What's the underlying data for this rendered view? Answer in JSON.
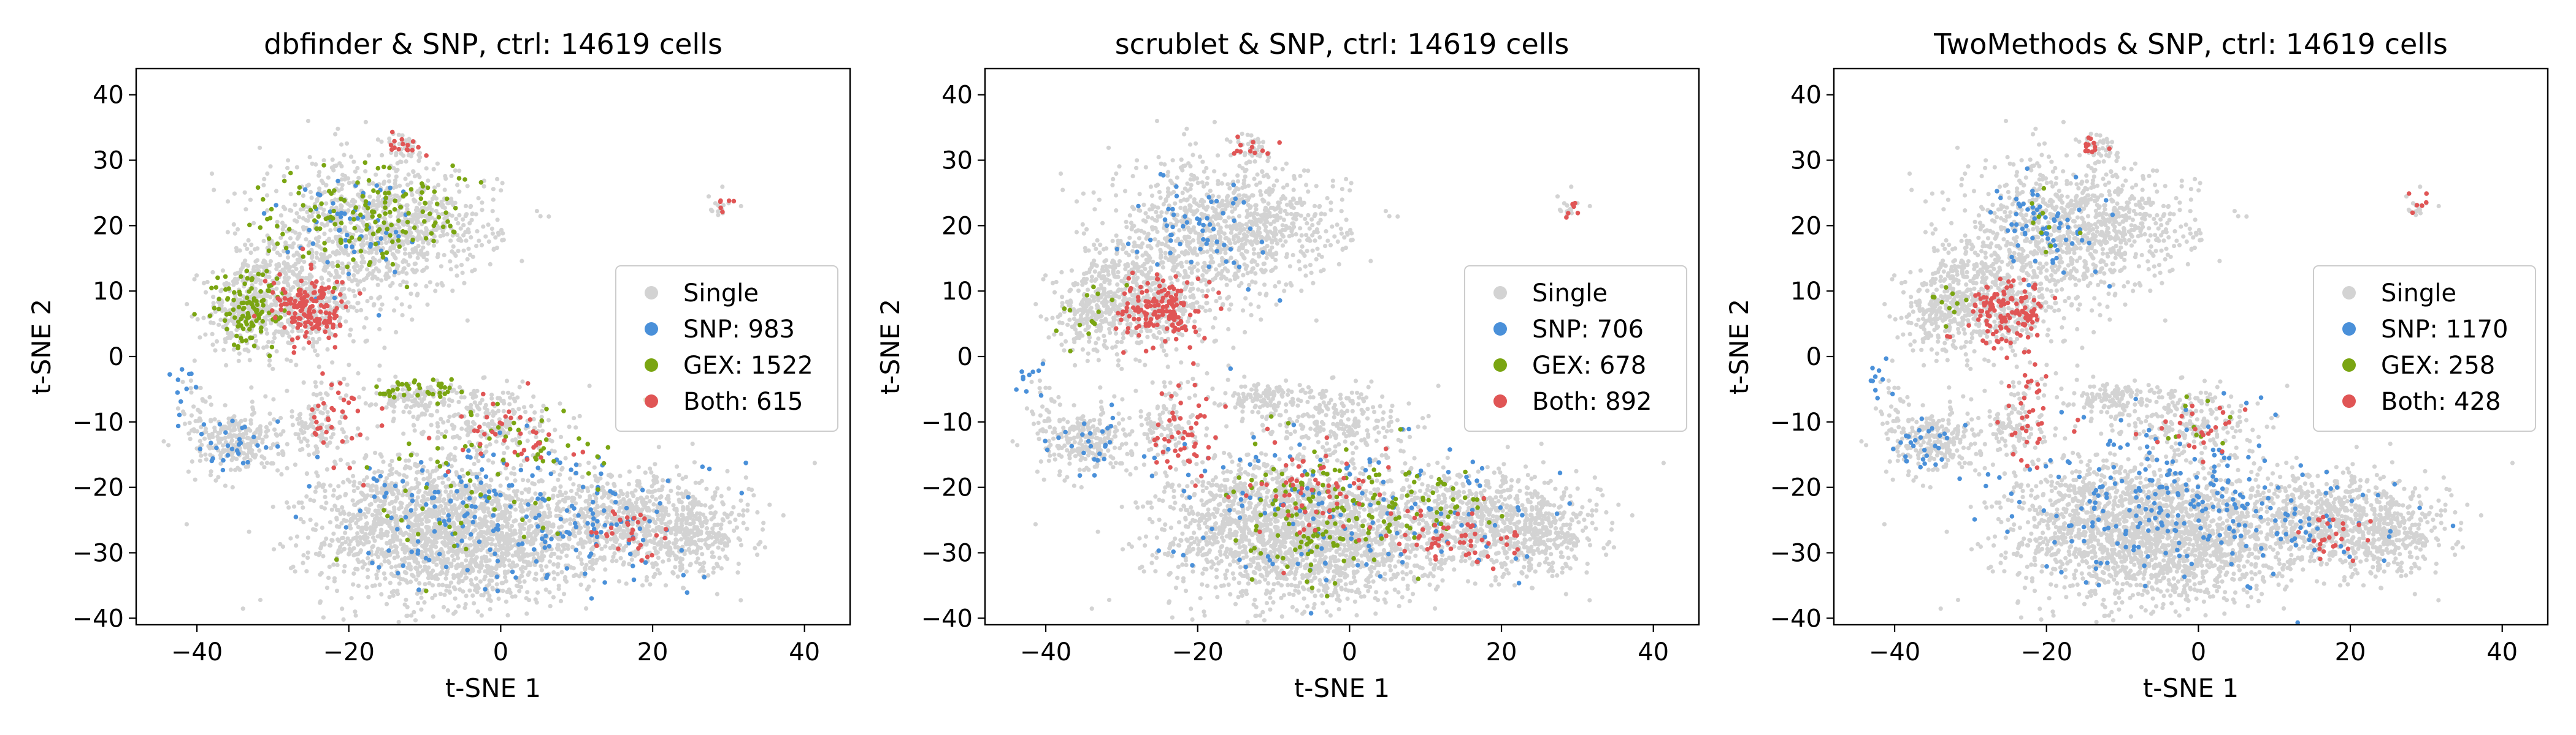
{
  "chart_data": [
    {
      "type": "scatter",
      "title": "dbfinder & SNP, ctrl: 14619 cells",
      "xlabel": "t-SNE 1",
      "ylabel": "t-SNE 2",
      "xlim": [
        -48,
        46
      ],
      "ylim": [
        -41,
        44
      ],
      "xticks": [
        -40,
        -20,
        0,
        20,
        40
      ],
      "yticks": [
        -40,
        -30,
        -20,
        -10,
        0,
        10,
        20,
        30,
        40
      ],
      "grid": false,
      "legend_position": "right",
      "series": [
        {
          "name": "Single",
          "color": "#d3d3d3"
        },
        {
          "name": "SNP: 983",
          "color": "#4a90d9"
        },
        {
          "name": "GEX: 1522",
          "color": "#7aa512"
        },
        {
          "name": "Both: 615",
          "color": "#e05555"
        }
      ]
    },
    {
      "type": "scatter",
      "title": "scrublet & SNP, ctrl: 14619 cells",
      "xlabel": "t-SNE 1",
      "ylabel": "t-SNE 2",
      "xlim": [
        -48,
        46
      ],
      "ylim": [
        -41,
        44
      ],
      "xticks": [
        -40,
        -20,
        0,
        20,
        40
      ],
      "yticks": [
        -40,
        -30,
        -20,
        -10,
        0,
        10,
        20,
        30,
        40
      ],
      "grid": false,
      "legend_position": "right",
      "series": [
        {
          "name": "Single",
          "color": "#d3d3d3"
        },
        {
          "name": "SNP: 706",
          "color": "#4a90d9"
        },
        {
          "name": "GEX: 678",
          "color": "#7aa512"
        },
        {
          "name": "Both: 892",
          "color": "#e05555"
        }
      ]
    },
    {
      "type": "scatter",
      "title": "TwoMethods & SNP, ctrl: 14619 cells",
      "xlabel": "t-SNE 1",
      "ylabel": "t-SNE 2",
      "xlim": [
        -48,
        46
      ],
      "ylim": [
        -41,
        44
      ],
      "xticks": [
        -40,
        -20,
        0,
        20,
        40
      ],
      "yticks": [
        -40,
        -30,
        -20,
        -10,
        0,
        10,
        20,
        30,
        40
      ],
      "grid": false,
      "legend_position": "right",
      "series": [
        {
          "name": "Single",
          "color": "#d3d3d3"
        },
        {
          "name": "SNP: 1170",
          "color": "#4a90d9"
        },
        {
          "name": "GEX: 258",
          "color": "#7aa512"
        },
        {
          "name": "Both: 428",
          "color": "#e05555"
        }
      ]
    }
  ]
}
